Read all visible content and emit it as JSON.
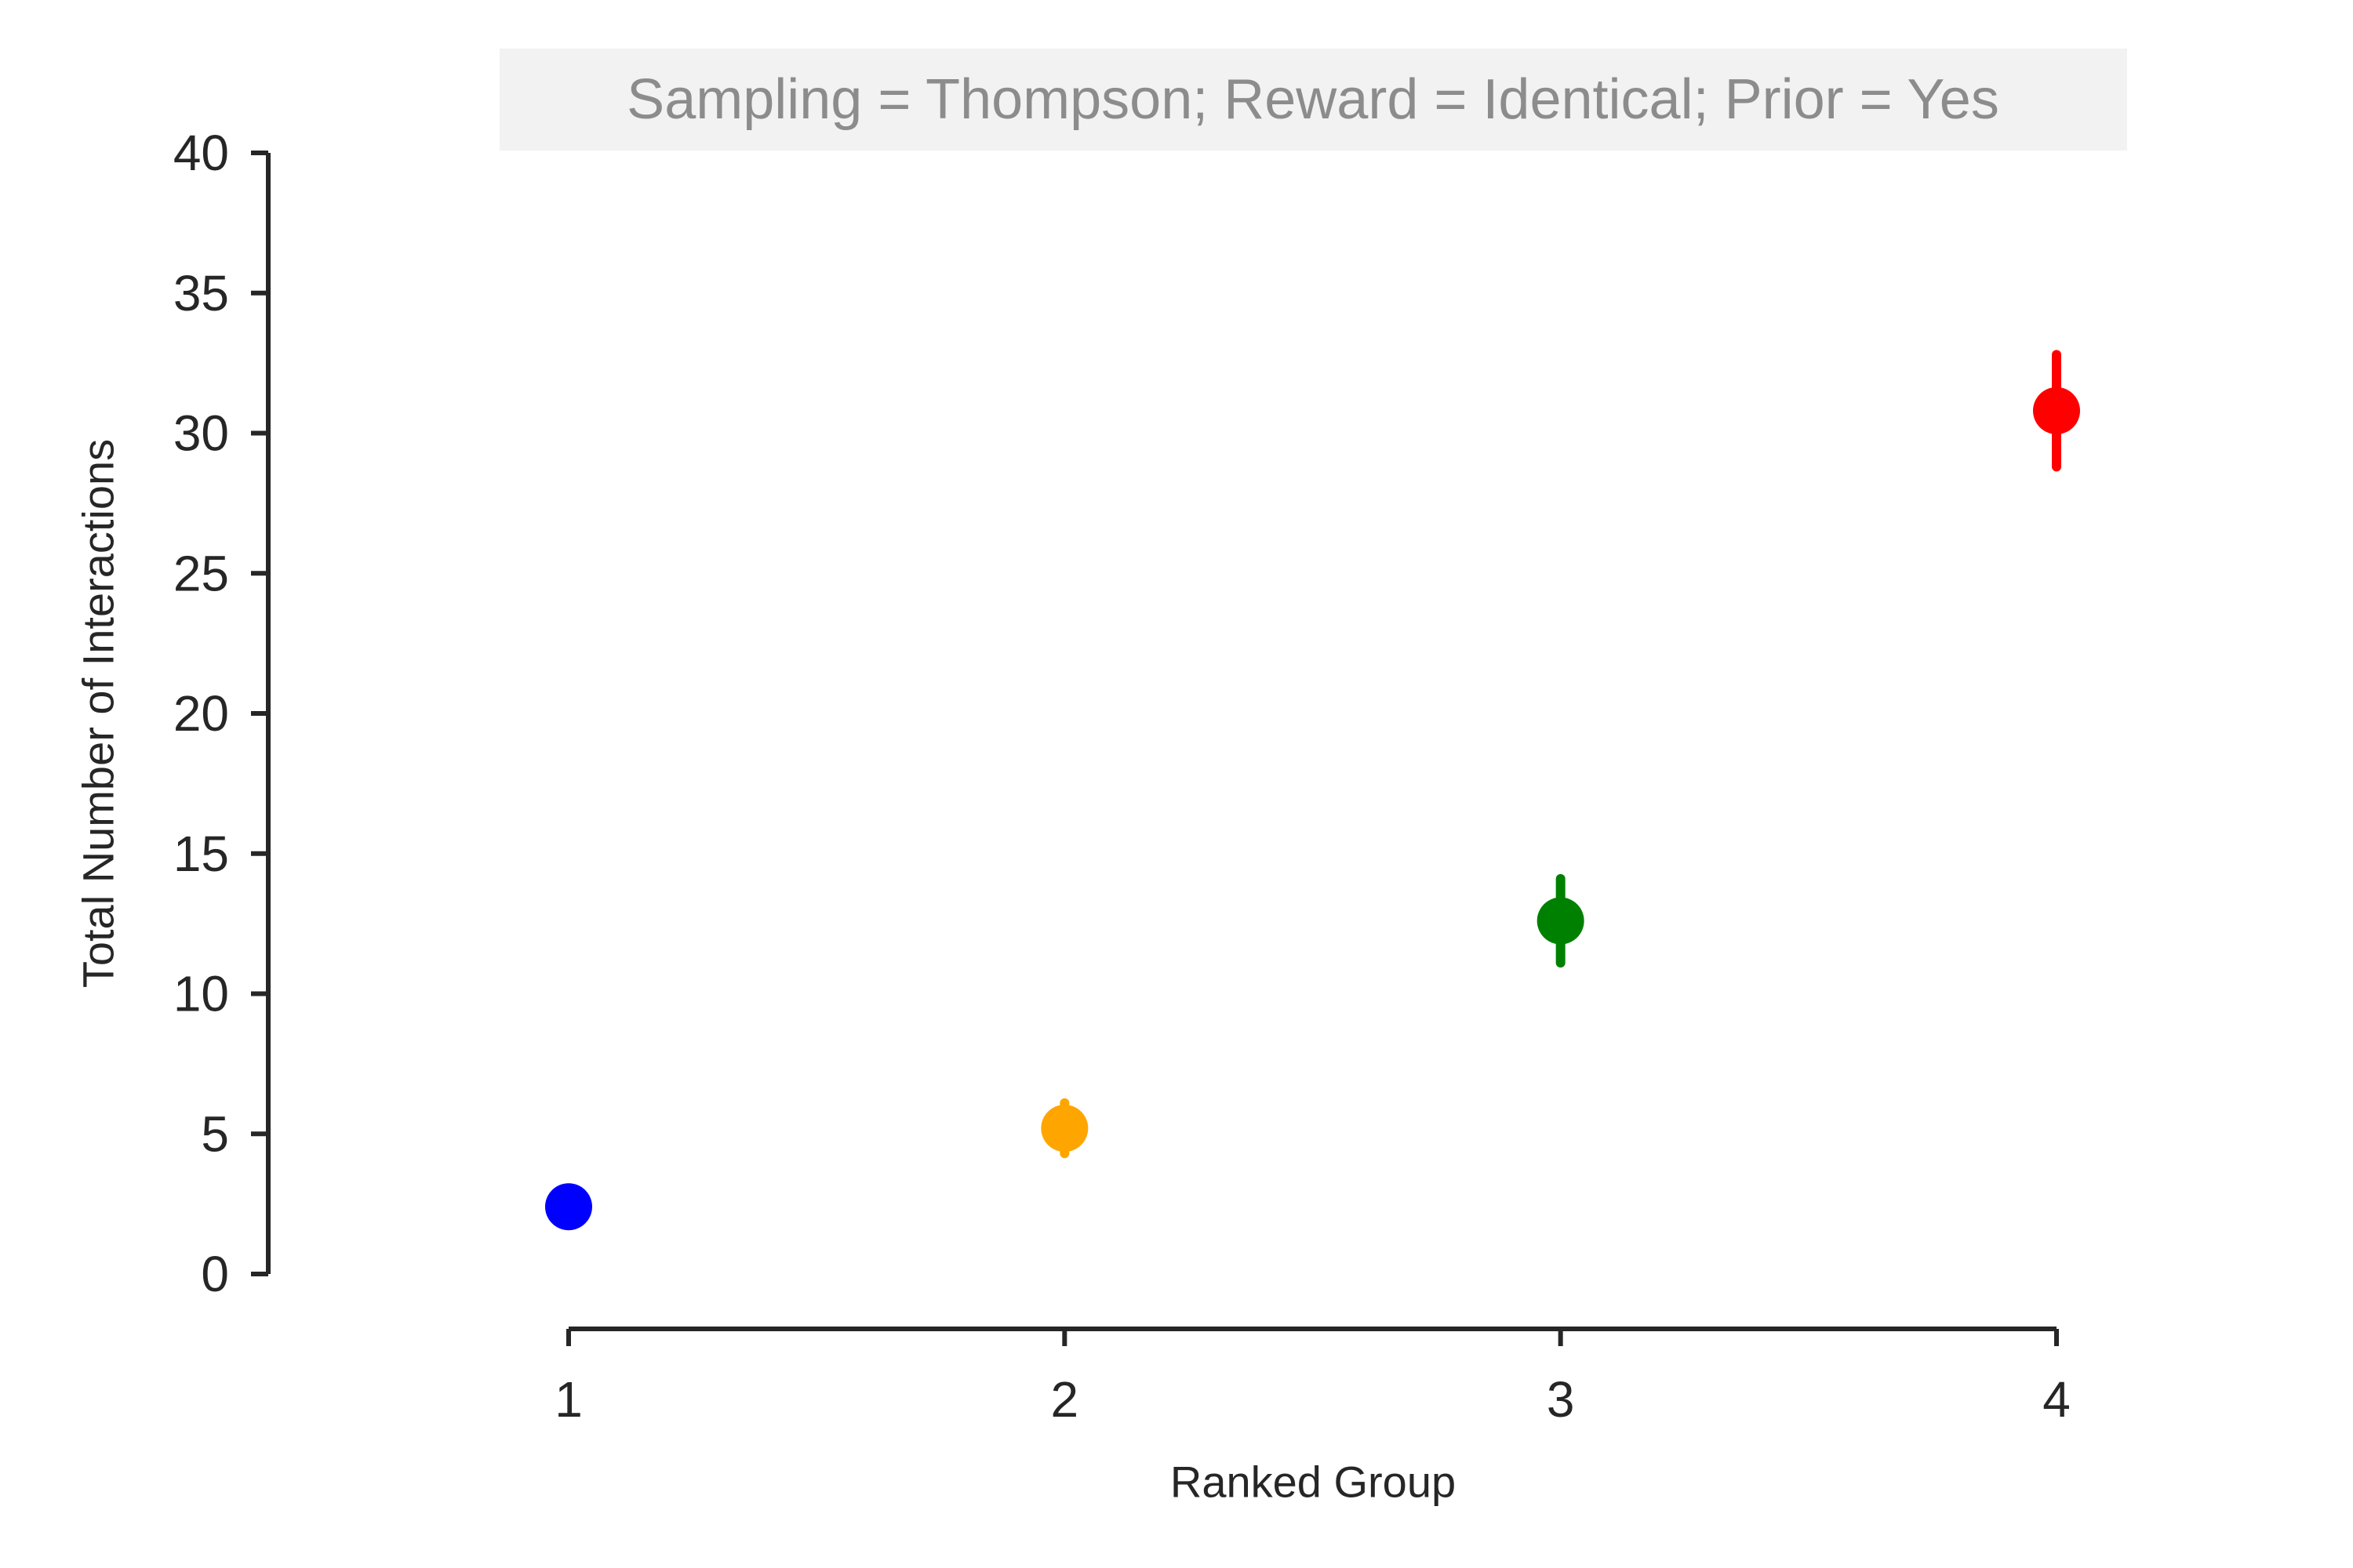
{
  "chart_data": {
    "type": "scatter",
    "title": "Sampling = Thompson; Reward = Identical; Prior = Yes",
    "xlabel": "Ranked Group",
    "ylabel": "Total Number of Interactions",
    "x_ticks": [
      "1",
      "2",
      "3",
      "4"
    ],
    "y_ticks": [
      "0",
      "5",
      "10",
      "15",
      "20",
      "25",
      "30",
      "35",
      "40"
    ],
    "ylim": [
      0,
      40
    ],
    "grid": false,
    "legend": null,
    "colors": {
      "axis": "#262626",
      "title_text": "#8c8c8c",
      "title_background": "#f2f2f2"
    },
    "points": [
      {
        "x": 1,
        "y": 2.4,
        "err_low": 2.4,
        "err_high": 2.4,
        "color": "#0000ff"
      },
      {
        "x": 2,
        "y": 5.2,
        "err_low": 4.3,
        "err_high": 6.1,
        "color": "#ffa500"
      },
      {
        "x": 3,
        "y": 12.6,
        "err_low": 11.1,
        "err_high": 14.1,
        "color": "#008000"
      },
      {
        "x": 4,
        "y": 30.8,
        "err_low": 28.8,
        "err_high": 32.8,
        "color": "#ff0000"
      }
    ]
  }
}
